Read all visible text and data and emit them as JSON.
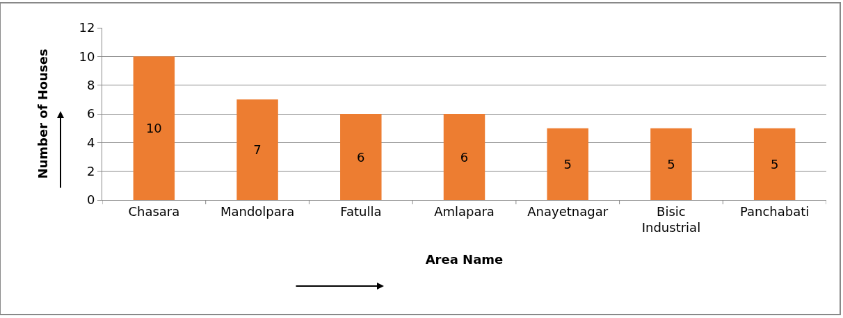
{
  "chart_data": {
    "type": "bar",
    "xlabel": "Area Name",
    "ylabel": "Number of Houses",
    "categories": [
      "Chasara",
      "Mandolpara",
      "Fatulla",
      "Amlapara",
      "Anayetnagar",
      "Bisic Industrial",
      "Panchabati"
    ],
    "values": [
      10,
      7,
      6,
      6,
      5,
      5,
      5
    ],
    "color": "#ed7d31",
    "ylim": [
      0,
      12
    ],
    "yticks": [
      0,
      2,
      4,
      6,
      8,
      10,
      12
    ],
    "grid": "y",
    "data_labels": true,
    "legend": false
  }
}
